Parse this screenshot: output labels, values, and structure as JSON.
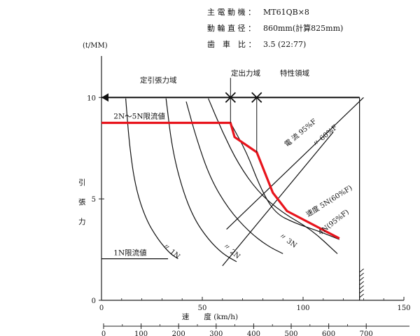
{
  "specs": {
    "motor_label": "主 電 動 機 ：",
    "motor_value": "MT61QB×8",
    "wheel_label": "動 輪 直 径 ：",
    "wheel_value": "860mm(計算825mm)",
    "gear_label": "歯　車　比 ：",
    "gear_value": "3.5 (22:77)"
  },
  "chart_data": {
    "type": "line",
    "title": "",
    "xlabel": "速　　度 (km/h)",
    "ylabel": "引張力",
    "y_unit": "(t/MM)",
    "x_ticks": [
      "0",
      "50",
      "100",
      "150"
    ],
    "x_range": [
      0,
      150
    ],
    "x2_ticks": [
      "0",
      "100",
      "200",
      "300",
      "400",
      "500",
      "600",
      "700"
    ],
    "x2_range": [
      0,
      750
    ],
    "y_ticks": [
      "0",
      "5",
      "10"
    ],
    "y_range": [
      0,
      11.7
    ],
    "regions": [
      {
        "label": "定引張力域",
        "x": [
          0,
          64
        ]
      },
      {
        "label": "定出力域",
        "x": [
          64,
          77
        ]
      },
      {
        "label": "特性領域",
        "x": [
          77,
          130
        ]
      }
    ],
    "limit_lines": [
      {
        "label": "2N～5N限流値",
        "y": 8.75,
        "x": [
          0,
          64
        ]
      },
      {
        "label": "1N限流値",
        "y": 2.05,
        "x": [
          0,
          33
        ]
      }
    ],
    "notch_labels": [
      "〃 1N",
      "〃 2N",
      "〃 3N",
      "4N(95%F)",
      "速度 5N(60%F)"
    ],
    "current_labels": [
      "電 流 95%F",
      "〃 60%F"
    ],
    "series": [
      {
        "x": [
          12,
          14,
          17,
          22,
          28,
          34,
          38
        ],
        "y": [
          9.95,
          7.5,
          5.5,
          4.0,
          3.0,
          2.3,
          2.05
        ]
      },
      {
        "x": [
          32,
          35,
          40,
          46,
          53,
          60,
          67
        ],
        "y": [
          9.95,
          7.5,
          5.5,
          4.0,
          3.0,
          2.3,
          1.9
        ]
      },
      {
        "x": [
          42,
          47,
          54,
          63,
          73,
          82,
          90
        ],
        "y": [
          9.8,
          8.0,
          6.0,
          4.5,
          3.4,
          2.7,
          2.3
        ]
      },
      {
        "x": [
          53,
          60,
          68,
          78,
          90,
          104,
          117
        ],
        "y": [
          9.95,
          8.3,
          6.7,
          5.3,
          4.3,
          3.5,
          2.3
        ]
      },
      {
        "x": [
          64,
          72,
          79,
          86,
          96,
          108,
          118
        ],
        "y": [
          8.75,
          7.3,
          5.5,
          4.3,
          3.8,
          3.4,
          3.0
        ]
      },
      {
        "x": [
          62,
          130
        ],
        "y": [
          3.5,
          10.0
        ]
      },
      {
        "x": [
          60,
          115
        ],
        "y": [
          1.7,
          8.3
        ]
      }
    ],
    "highlight": {
      "x": [
        0,
        64,
        66,
        77,
        85,
        92,
        118
      ],
      "y": [
        8.75,
        8.75,
        8.05,
        7.3,
        5.3,
        4.4,
        3.05
      ],
      "color": "#e8141c"
    },
    "curve_color": "#111111",
    "grid": false
  }
}
